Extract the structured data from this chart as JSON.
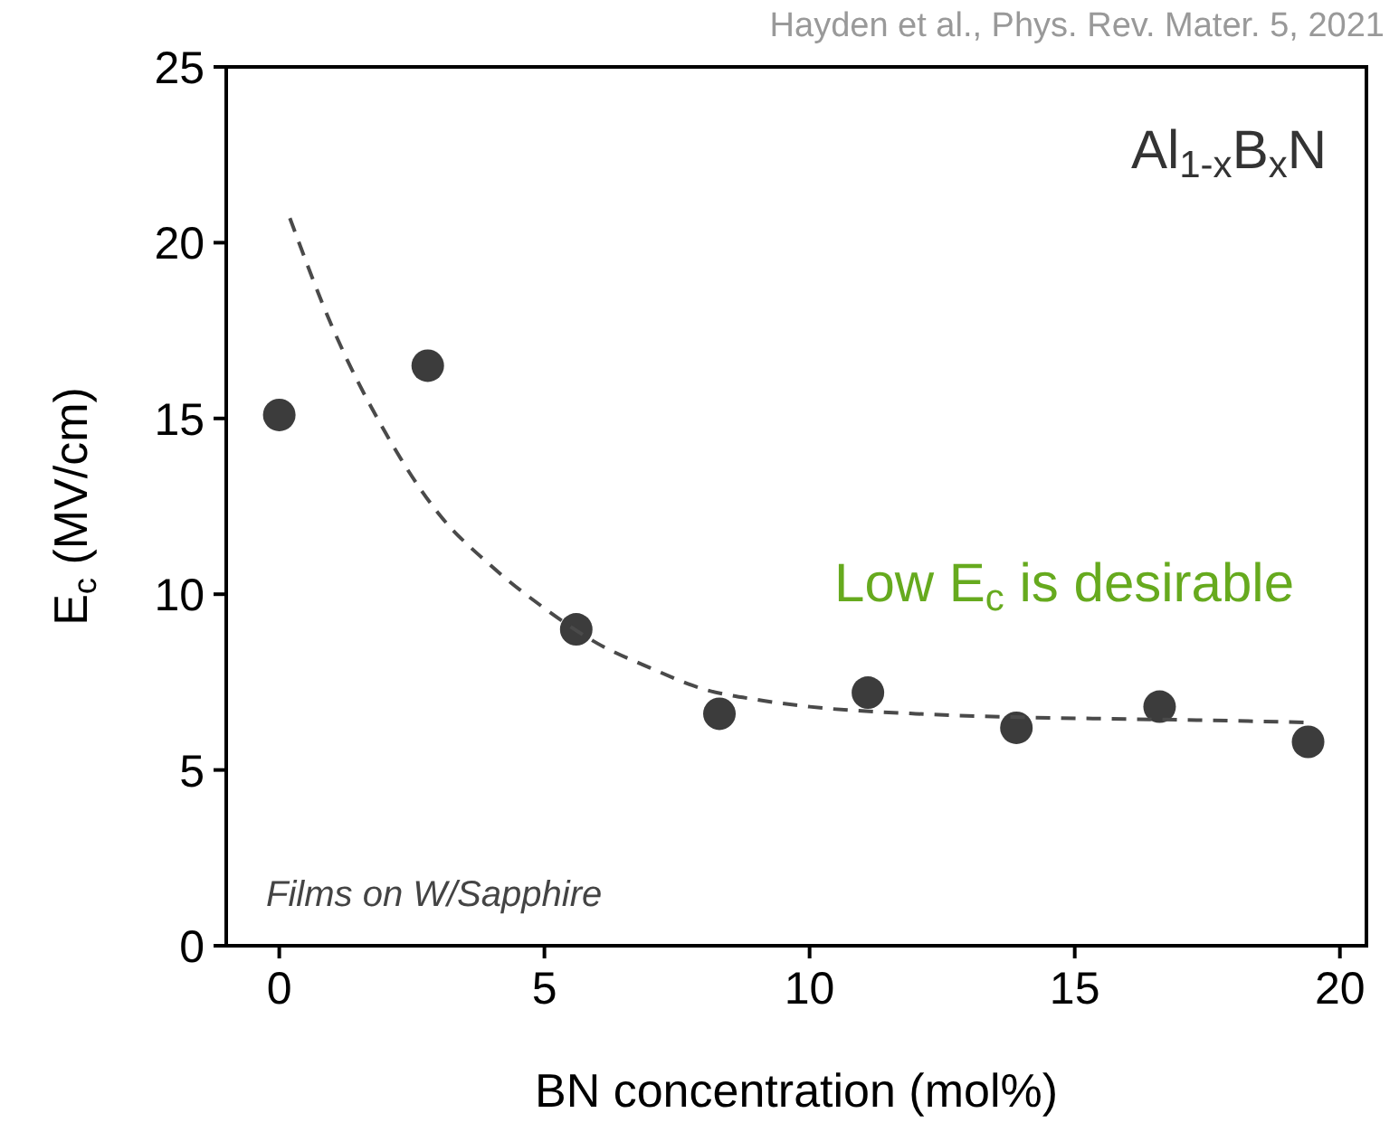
{
  "chart_data": {
    "type": "scatter",
    "xlabel": "BN concentration (mol%)",
    "ylabel": "E$_{c}$ (MV/cm)",
    "series": [
      {
        "color": "#3c3c3c",
        "marker": "circle",
        "x": [
          0,
          2.8,
          5.6,
          8.3,
          11.1,
          13.9,
          16.6,
          19.4
        ],
        "values": [
          15.1,
          16.5,
          9.0,
          6.6,
          7.2,
          6.2,
          6.8,
          5.8
        ]
      },
      {
        "type": "line",
        "color": "#4a4a4a",
        "line_style": "dashed",
        "marker": "none",
        "x": [
          0.2,
          1,
          2,
          3,
          4,
          5,
          6,
          7,
          8,
          9,
          10,
          12,
          14,
          16,
          18,
          19.4
        ],
        "values": [
          20.7,
          17.6,
          14.6,
          12.3,
          10.8,
          9.6,
          8.6,
          7.9,
          7.3,
          7.0,
          6.8,
          6.6,
          6.5,
          6.45,
          6.4,
          6.35
        ]
      }
    ],
    "xlim": [
      -1,
      20.5
    ],
    "ylim": [
      0,
      25
    ],
    "xticks": [
      0,
      5,
      10,
      15,
      20
    ],
    "yticks": [
      0,
      5,
      10,
      15,
      20,
      25
    ],
    "grid": false,
    "annotations": [
      "Al$_{1-x}$B$_{x}$N",
      "Low E$_{c}$ is desirable",
      "Films on W/Sapphire",
      "Hayden et al., Phys. Rev. Mater. 5, 2021"
    ]
  }
}
